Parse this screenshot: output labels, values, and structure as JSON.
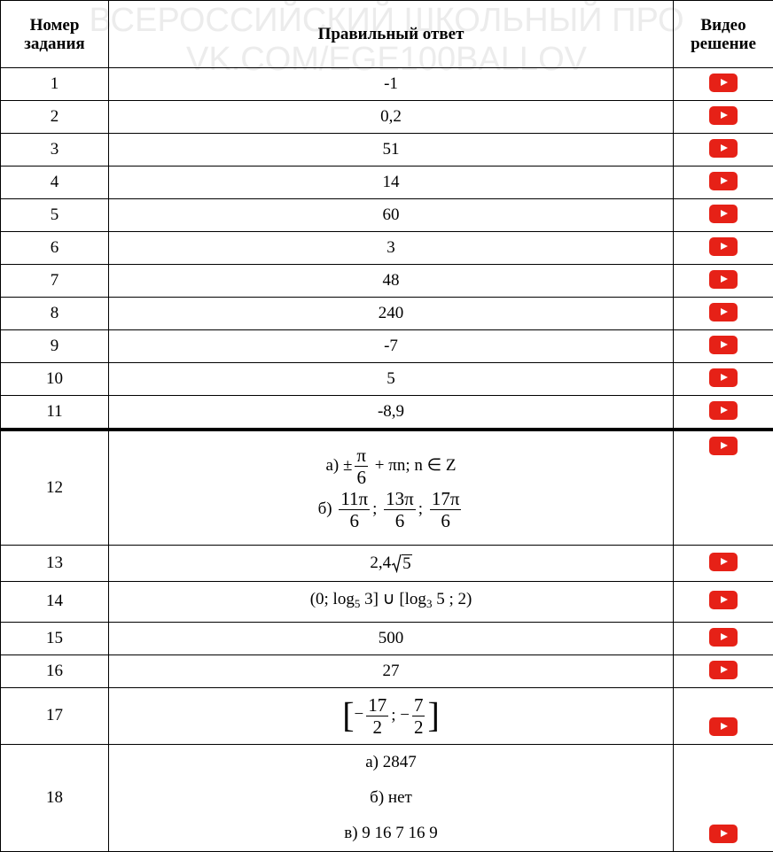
{
  "watermark": [
    "ВСЕРОССИЙСКИЙ ШКОЛЬНЫЙ ПРО",
    "VK.COM/EGE100BALLOV"
  ],
  "table": {
    "header": [
      "Номер задания",
      "Правильный ответ",
      "Видео решение"
    ],
    "rows": [
      {
        "number": "1",
        "answer": "-1"
      },
      {
        "number": "2",
        "answer": "0,2"
      },
      {
        "number": "3",
        "answer": "51"
      },
      {
        "number": "4",
        "answer": "14"
      },
      {
        "number": "5",
        "answer": "60"
      },
      {
        "number": "6",
        "answer": "3"
      },
      {
        "number": "7",
        "answer": "48"
      },
      {
        "number": "8",
        "answer": "240"
      },
      {
        "number": "9",
        "answer": "-7"
      },
      {
        "number": "10",
        "answer": "5"
      },
      {
        "number": "11",
        "answer": "-8,9"
      },
      {
        "number": "12",
        "answer": [
          [
            "а) ±",
            {
              "num": "π",
              "den": "6"
            },
            " + πn; n ∈ Z"
          ],
          [
            "б) ",
            {
              "num": "11π",
              "den": "6"
            },
            "; ",
            {
              "num": "13π",
              "den": "6"
            },
            "; ",
            {
              "num": "17π",
              "den": "6"
            }
          ]
        ]
      },
      {
        "number": "13",
        "answer": [
          [
            "2,4",
            {
              "sqrt": "5"
            }
          ]
        ]
      },
      {
        "number": "14",
        "answer": [
          [
            "(0; log",
            {
              "sub": "5"
            },
            " 3] ∪ [log",
            {
              "sub": "3"
            },
            " 5 ; 2)"
          ]
        ]
      },
      {
        "number": "15",
        "answer": "500"
      },
      {
        "number": "16",
        "answer": "27"
      },
      {
        "number": "17",
        "answer": [
          [
            "[−",
            {
              "num": "17",
              "den": "2"
            },
            "; −",
            {
              "num": "7",
              "den": "2"
            },
            "]"
          ]
        ]
      },
      {
        "number": "18",
        "answer": [
          [
            "а) 2847"
          ],
          [
            "б) нет"
          ],
          [
            "в) 9 16 7 16 9"
          ]
        ]
      }
    ]
  }
}
